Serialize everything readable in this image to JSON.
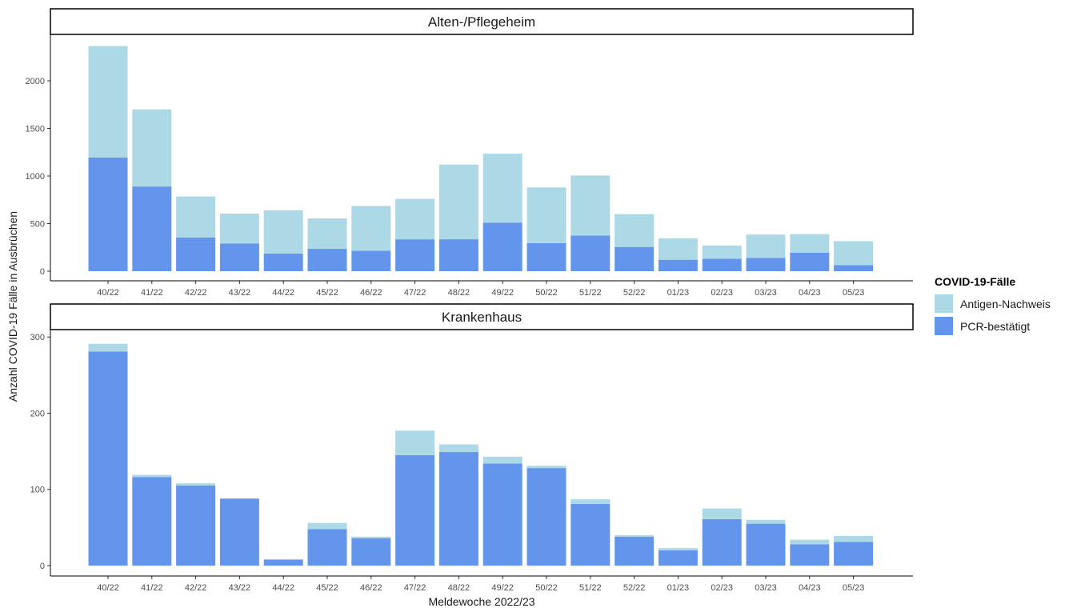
{
  "chart_data": {
    "type": "bar",
    "stacked": true,
    "xlabel": "Meldewoche 2022/23",
    "ylabel": "Anzahl COVID-19 Fälle in Ausbrüchen",
    "categories": [
      "40/22",
      "41/22",
      "42/22",
      "43/22",
      "44/22",
      "45/22",
      "46/22",
      "47/22",
      "48/22",
      "49/22",
      "50/22",
      "51/22",
      "52/22",
      "01/23",
      "02/23",
      "03/23",
      "04/23",
      "05/23"
    ],
    "legend": {
      "title": "COVID-19-Fälle",
      "position": "right",
      "items": [
        {
          "label": "Antigen-Nachweis",
          "color": "#add8e6"
        },
        {
          "label": "PCR-bestätigt",
          "color": "#6495ed"
        }
      ]
    },
    "grid": false,
    "panels": [
      {
        "title": "Alten-/Pflegeheim",
        "ylim": [
          0,
          2370
        ],
        "yticks": [
          0,
          500,
          1000,
          1500,
          2000
        ],
        "series": [
          {
            "name": "PCR-bestätigt",
            "values": [
              1195,
              890,
              355,
              290,
              185,
              235,
              215,
              335,
              335,
              510,
              295,
              375,
              255,
              120,
              130,
              140,
              195,
              65
            ]
          },
          {
            "name": "Antigen-Nachweis",
            "values": [
              1170,
              810,
              430,
              315,
              455,
              320,
              470,
              425,
              785,
              725,
              585,
              630,
              345,
              225,
              140,
              245,
              195,
              250
            ]
          }
        ]
      },
      {
        "title": "Krankenhaus",
        "ylim": [
          0,
          295
        ],
        "yticks": [
          0,
          100,
          200,
          300
        ],
        "series": [
          {
            "name": "PCR-bestätigt",
            "values": [
              281,
              116,
              105,
              88,
              8,
              48,
              36,
              145,
              149,
              134,
              128,
              81,
              38,
              20,
              61,
              55,
              28,
              31
            ]
          },
          {
            "name": "Antigen-Nachweis",
            "values": [
              10,
              3,
              3,
              0,
              0,
              8,
              2,
              32,
              10,
              9,
              3,
              6,
              2,
              3,
              14,
              5,
              6,
              8
            ]
          }
        ]
      }
    ]
  }
}
